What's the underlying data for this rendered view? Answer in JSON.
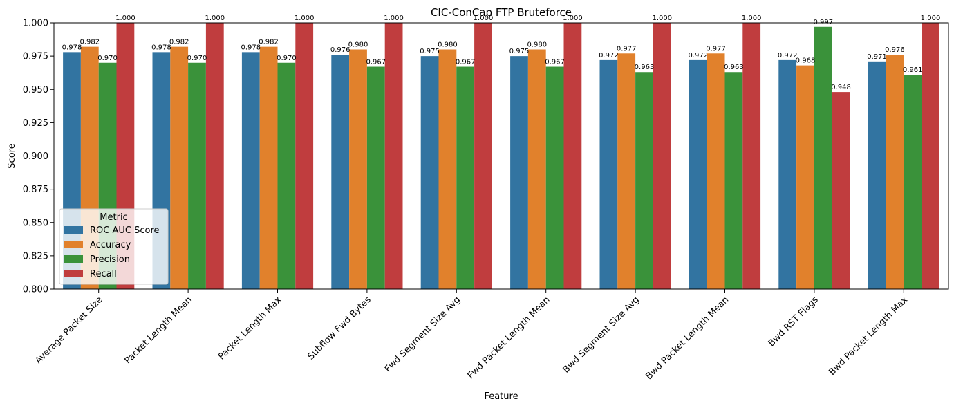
{
  "chart_data": {
    "type": "bar",
    "title": "CIC-ConCap FTP Bruteforce",
    "xlabel": "Feature",
    "ylabel": "Score",
    "ylim": [
      0.8,
      1.0
    ],
    "yticks": [
      "0.800",
      "0.825",
      "0.850",
      "0.875",
      "0.900",
      "0.925",
      "0.950",
      "0.975",
      "1.000"
    ],
    "categories": [
      "Average Packet Size",
      "Packet Length Mean",
      "Packet Length Max",
      "Subflow Fwd Bytes",
      "Fwd Segment Size Avg",
      "Fwd Packet Length Mean",
      "Bwd Segment Size Avg",
      "Bwd Packet Length Mean",
      "Bwd RST Flags",
      "Bwd Packet Length Max"
    ],
    "series": [
      {
        "name": "ROC AUC Score",
        "color": "#3274a1",
        "values": [
          0.978,
          0.978,
          0.978,
          0.976,
          0.975,
          0.975,
          0.972,
          0.972,
          0.972,
          0.971
        ],
        "labels": [
          "0.978",
          "0.978",
          "0.978",
          "0.976",
          "0.975",
          "0.975",
          "0.972",
          "0.972",
          "0.972",
          "0.971"
        ]
      },
      {
        "name": "Accuracy",
        "color": "#e1812c",
        "values": [
          0.982,
          0.982,
          0.982,
          0.98,
          0.98,
          0.98,
          0.977,
          0.977,
          0.968,
          0.976
        ],
        "labels": [
          "0.982",
          "0.982",
          "0.982",
          "0.980",
          "0.980",
          "0.980",
          "0.977",
          "0.977",
          "0.968",
          "0.976"
        ]
      },
      {
        "name": "Precision",
        "color": "#3a923a",
        "values": [
          0.97,
          0.97,
          0.97,
          0.967,
          0.967,
          0.967,
          0.963,
          0.963,
          0.997,
          0.961
        ],
        "labels": [
          "0.970",
          "0.970",
          "0.970",
          "0.967",
          "0.967",
          "0.967",
          "0.963",
          "0.963",
          "0.997",
          "0.961"
        ]
      },
      {
        "name": "Recall",
        "color": "#c03d3e",
        "values": [
          1.0,
          1.0,
          1.0,
          1.0,
          1.0,
          1.0,
          1.0,
          1.0,
          0.948,
          1.0
        ],
        "labels": [
          "1.000",
          "1.000",
          "1.000",
          "1.000",
          "1.000",
          "1.000",
          "1.000",
          "1.000",
          "0.948",
          "1.000"
        ]
      }
    ],
    "legend": {
      "title": "Metric",
      "position": "lower-left"
    },
    "grid": false
  }
}
